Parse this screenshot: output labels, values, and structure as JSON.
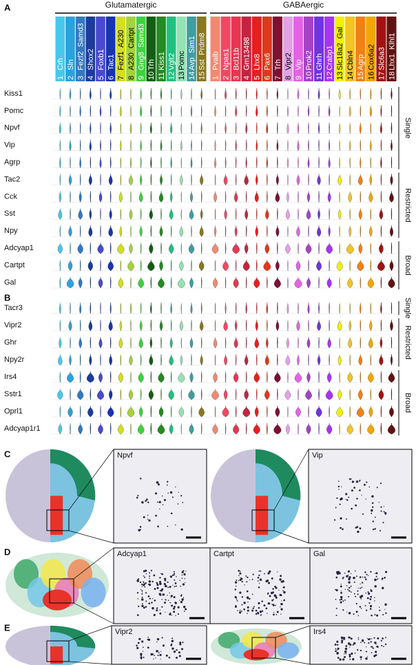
{
  "panel_labels": [
    "A",
    "B",
    "C",
    "D",
    "E"
  ],
  "groups": [
    {
      "title": "Glutamatergic",
      "clusters": [
        {
          "number": 1,
          "name": "Crh",
          "color": "#48c8ec"
        },
        {
          "number": 2,
          "name": "Sln",
          "color": "#2aa2dc"
        },
        {
          "number": 3,
          "name": "Fezf2  Samd3",
          "color": "#3478c0"
        },
        {
          "number": 4,
          "name": "Shox2",
          "color": "#1c3c9c"
        },
        {
          "number": 5,
          "name": "Foxb1",
          "color": "#4a4ad0"
        },
        {
          "number": 6,
          "name": "Tac1",
          "color": "#1634b4"
        },
        {
          "number": 7,
          "name": "Fezf1  A230",
          "color": "#d4de22"
        },
        {
          "number": 8,
          "name": "A230  Cartpt",
          "color": "#a6d23a"
        },
        {
          "number": 9,
          "name": "Gng8  Samd3",
          "color": "#3ed23e"
        },
        {
          "number": 10,
          "name": "Trh",
          "color": "#145e14"
        },
        {
          "number": 11,
          "name": "Kiss1",
          "color": "#248a24"
        },
        {
          "number": 12,
          "name": "Vglt2",
          "color": "#22c080"
        },
        {
          "number": 13,
          "name": "Pomc",
          "color": "#96e2b4"
        },
        {
          "number": 14,
          "name": "Avp  Sim1",
          "color": "#3e9ea2"
        },
        {
          "number": 15,
          "name": "Sst  Prdm8",
          "color": "#8a7820"
        }
      ]
    },
    {
      "title": "GABAergic",
      "clusters": [
        {
          "number": 1,
          "name": "Pvalb",
          "color": "#f28872"
        },
        {
          "number": 2,
          "name": "Npas1",
          "color": "#f04862"
        },
        {
          "number": 3,
          "name": "Bcl11b",
          "color": "#e63650"
        },
        {
          "number": 4,
          "name": "Gm13498",
          "color": "#c42440"
        },
        {
          "number": 5,
          "name": "Lhx8",
          "color": "#e42020"
        },
        {
          "number": 6,
          "name": "Pax6",
          "color": "#e0381a"
        },
        {
          "number": 7,
          "name": "Trh",
          "color": "#7e1032"
        },
        {
          "number": 8,
          "name": "Vipr2",
          "color": "#e2a2e6"
        },
        {
          "number": 9,
          "name": "Vip",
          "color": "#e462e6"
        },
        {
          "number": 10,
          "name": "Prok2",
          "color": "#a444c4"
        },
        {
          "number": 11,
          "name": "Ghrh",
          "color": "#7034e2"
        },
        {
          "number": 12,
          "name": "Crabp1",
          "color": "#a634f2"
        },
        {
          "number": 13,
          "name": "Slc18a2  Gal",
          "color": "#f2f000"
        },
        {
          "number": 14,
          "name": "Cbln4",
          "color": "#f2c424"
        },
        {
          "number": 15,
          "name": "Agrp",
          "color": "#f28014"
        },
        {
          "number": 16,
          "name": "Cox6a2",
          "color": "#f2a600"
        },
        {
          "number": 17,
          "name": "Slc6a3",
          "color": "#a21212"
        },
        {
          "number": 18,
          "name": "Lhx1  Klhl1",
          "color": "#621212"
        }
      ]
    }
  ],
  "panel_a": {
    "rows": [
      {
        "gene": "Kiss1",
        "category": "Single"
      },
      {
        "gene": "Pomc",
        "category": "Single"
      },
      {
        "gene": "Npvf",
        "category": "Single"
      },
      {
        "gene": "Vip",
        "category": "Single"
      },
      {
        "gene": "Agrp",
        "category": "Single"
      },
      {
        "gene": "Tac2",
        "category": "Restricted"
      },
      {
        "gene": "Cck",
        "category": "Restricted"
      },
      {
        "gene": "Sst",
        "category": "Restricted"
      },
      {
        "gene": "Npy",
        "category": "Restricted"
      },
      {
        "gene": "Adcyap1",
        "category": "Broad"
      },
      {
        "gene": "Cartpt",
        "category": "Broad"
      },
      {
        "gene": "Gal",
        "category": "Broad"
      }
    ],
    "categories": [
      "Single",
      "Restricted",
      "Broad"
    ]
  },
  "panel_b": {
    "rows": [
      {
        "gene": "Tacr3",
        "category": "Single"
      },
      {
        "gene": "Vipr2",
        "category": "Restricted"
      },
      {
        "gene": "Ghr",
        "category": "Restricted"
      },
      {
        "gene": "Npy2r",
        "category": "Restricted"
      },
      {
        "gene": "Irs4",
        "category": "Broad"
      },
      {
        "gene": "Sstr1",
        "category": "Broad"
      },
      {
        "gene": "Oprl1",
        "category": "Broad"
      },
      {
        "gene": "Adcyap1r1",
        "category": "Broad"
      }
    ],
    "categories": [
      "Single",
      "Restricted",
      "Broad"
    ]
  },
  "images": {
    "c": [
      "Npvf",
      "Vip"
    ],
    "d": [
      "Adcyap1",
      "Cartpt",
      "Gal"
    ],
    "e": [
      "Vipr2",
      "Irs4"
    ]
  }
}
